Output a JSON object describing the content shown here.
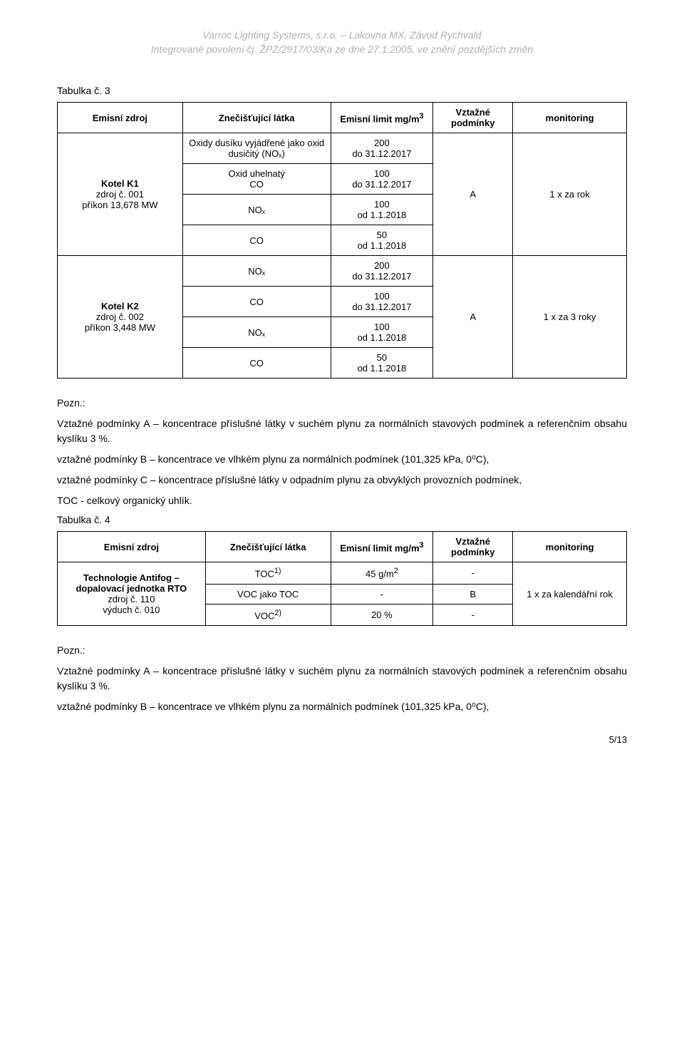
{
  "header": {
    "line1": "Varroc Lighting Systems, s.r.o. – Lakovna MX, Závod Rychvald",
    "line2": "Integrované povolení čj. ŽPZ/2917/03/Ka ze dne 27.1.2005, ve znění pozdějších změn"
  },
  "table3": {
    "caption": "Tabulka č. 3",
    "headers": {
      "source": "Emisní zdroj",
      "pollutant": "Znečišťující látka",
      "limit": "Emisní limit mg/m",
      "limit_sup": "3",
      "cond": "Vztažné podmínky",
      "mon": "monitoring"
    },
    "group1": {
      "source_html": "<b>Kotel K1</b><br>zdroj č. 001<br>příkon 13,678 MW",
      "cond": "A",
      "mon": "1 x za rok",
      "rows": [
        {
          "poll": "Oxidy dusíku vyjádřené jako oxid dusičitý (NOₓ)",
          "limit": "200<br>do 31.12.2017"
        },
        {
          "poll": "Oxid uhelnatý<br>CO",
          "limit": "100<br>do 31.12.2017"
        },
        {
          "poll": "NOₓ",
          "limit": "100<br>od 1.1.2018"
        },
        {
          "poll": "CO",
          "limit": "50<br>od 1.1.2018"
        }
      ]
    },
    "group2": {
      "source_html": "<b>Kotel K2</b><br>zdroj č. 002<br>příkon  3,448 MW",
      "cond": "A",
      "mon": "1 x za 3 roky",
      "rows": [
        {
          "poll": "NOₓ",
          "limit": "200<br>do 31.12.2017"
        },
        {
          "poll": "CO",
          "limit": "100<br>do 31.12.2017"
        },
        {
          "poll": "NOₓ",
          "limit": "100<br>od 1.1.2018"
        },
        {
          "poll": "CO",
          "limit": "50<br>od 1.1.2018"
        }
      ]
    }
  },
  "notes1": {
    "title": "Pozn.:",
    "p1": "Vztažné podmínky A – koncentrace příslušné látky v suchém plynu za normálních stavových podmínek a referenčním obsahu kyslíku 3 %.",
    "p2": "vztažné podmínky B – koncentrace ve vlhkém plynu za normálních podmínek  (101,325 kPa, 0⁰C),",
    "p3": "vztažné podmínky C – koncentrace příslušné látky v odpadním plynu za obvyklých provozních podmínek,",
    "p4": "TOC - celkový organický uhlík."
  },
  "table4": {
    "caption": "Tabulka č. 4",
    "headers": {
      "source": "Emisní zdroj",
      "pollutant": "Znečišťující látka",
      "limit": "Emisní limit mg/m",
      "limit_sup": "3",
      "cond": "Vztažné podmínky",
      "mon": "monitoring"
    },
    "group": {
      "source_html": "<b>Technologie Antifog – dopalovací jednotka RTO</b><br>zdroj č. 110<br>výduch č. 010",
      "mon": "1 x za kalendářní rok",
      "rows": [
        {
          "poll": "TOC<sup>1)</sup>",
          "limit": "45 g/m<sup>2</sup>",
          "cond": "-"
        },
        {
          "poll": "VOC jako TOC",
          "limit": "-",
          "cond": "B"
        },
        {
          "poll": "VOC<sup>2)</sup>",
          "limit": "20 %",
          "cond": "-"
        }
      ]
    }
  },
  "notes2": {
    "title": "Pozn.:",
    "p1": "Vztažné podmínky A – koncentrace příslušné látky v suchém plynu za normálních stavových podmínek a referenčním obsahu kyslíku 3 %.",
    "p2": "vztažné podmínky B – koncentrace ve vlhkém plynu za normálních podmínek  (101,325 kPa, 0⁰C),"
  },
  "pagenum": "5/13"
}
